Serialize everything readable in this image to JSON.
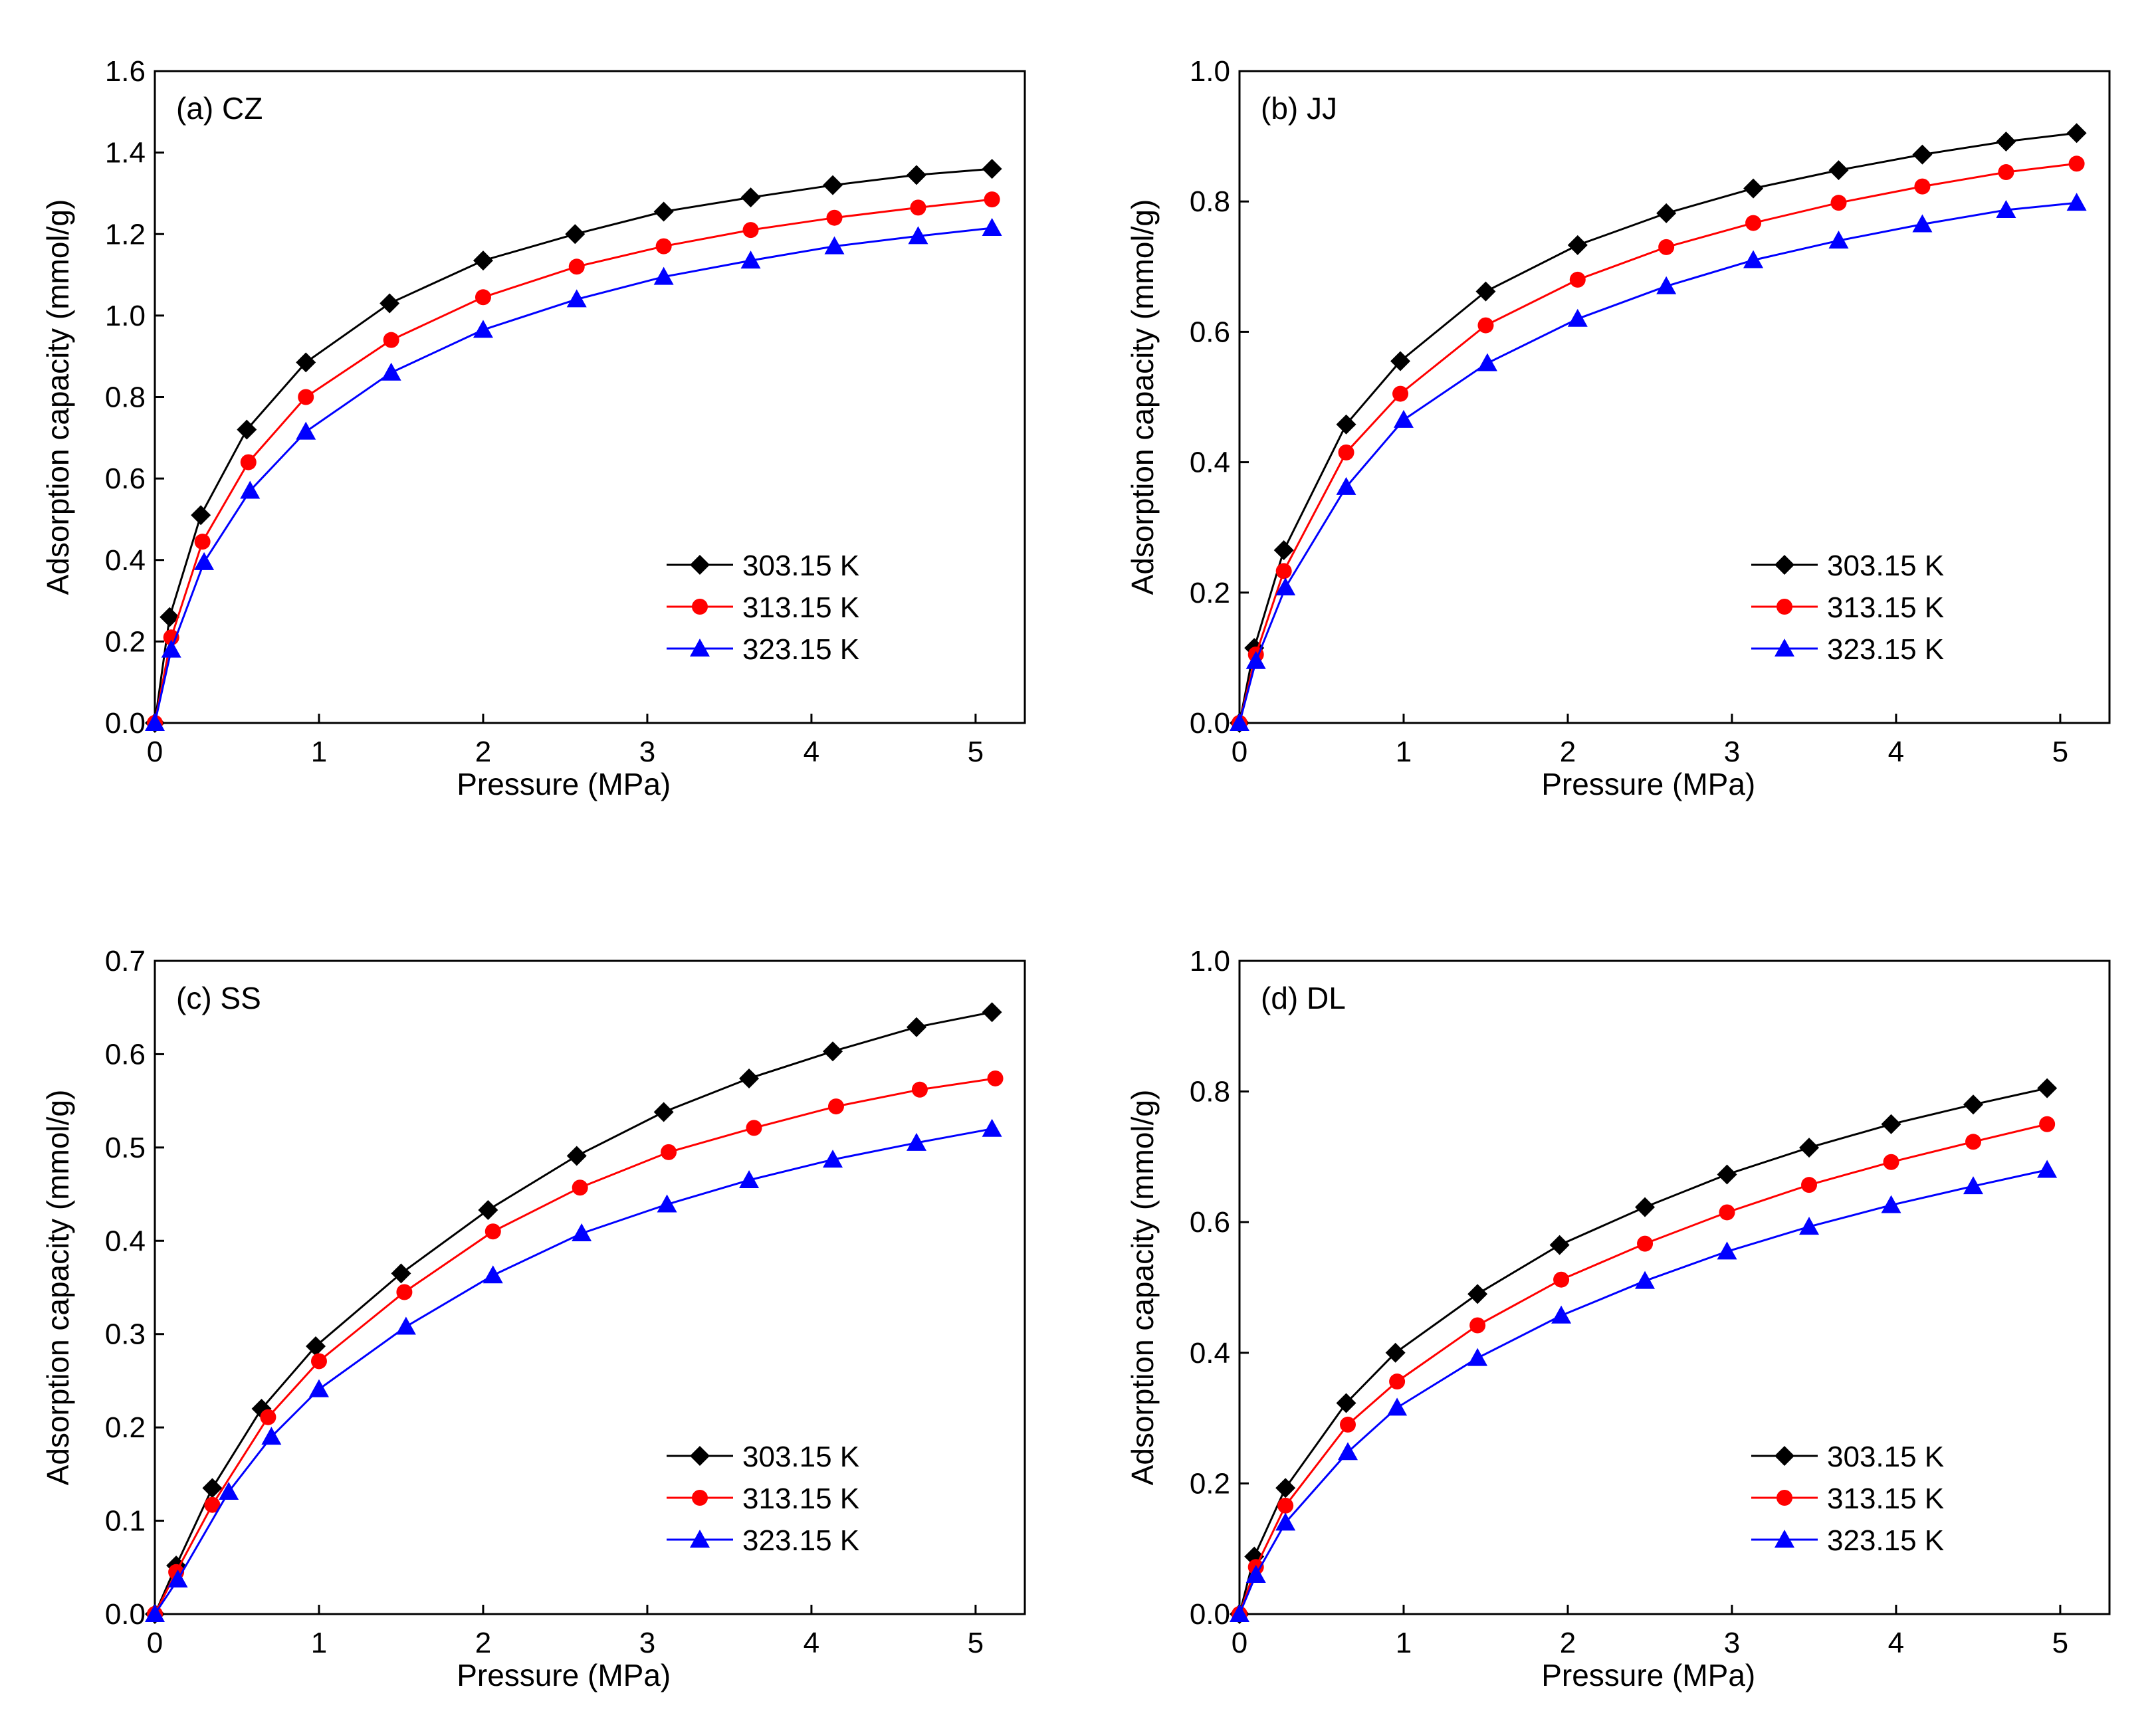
{
  "figure": {
    "title": ""
  },
  "colors": {
    "s303": "#000000",
    "s313": "#ff0000",
    "s323": "#0000ff"
  },
  "chart_data": [
    {
      "type": "line",
      "panel_label": "(a) CZ",
      "xlabel": "Pressure (MPa)",
      "ylabel": "Adsorption capacity (mmol/g)",
      "xlim": [
        0,
        5.3
      ],
      "ylim": [
        0,
        1.6
      ],
      "xticks": [
        "0",
        "1",
        "2",
        "3",
        "4",
        "5"
      ],
      "xtick_values": [
        0,
        1,
        2,
        3,
        4,
        5
      ],
      "yticks": [
        "0.0",
        "0.2",
        "0.4",
        "0.6",
        "0.8",
        "1.0",
        "1.2",
        "1.4",
        "1.6"
      ],
      "ytick_values": [
        0,
        0.2,
        0.4,
        0.6,
        0.8,
        1.0,
        1.2,
        1.4,
        1.6
      ],
      "legend_position": "lower-right",
      "series": [
        {
          "name": "303.15 K",
          "color_key": "s303",
          "marker": "diamond",
          "x": [
            0,
            0.09,
            0.28,
            0.56,
            0.92,
            1.43,
            2.0,
            2.56,
            3.1,
            3.63,
            4.13,
            4.64,
            5.1
          ],
          "y": [
            0,
            0.26,
            0.51,
            0.72,
            0.885,
            1.03,
            1.135,
            1.2,
            1.255,
            1.29,
            1.32,
            1.345,
            1.36
          ]
        },
        {
          "name": "313.15 K",
          "color_key": "s313",
          "marker": "circle",
          "x": [
            0,
            0.1,
            0.29,
            0.57,
            0.92,
            1.44,
            2.0,
            2.57,
            3.1,
            3.63,
            4.14,
            4.65,
            5.1
          ],
          "y": [
            0,
            0.21,
            0.445,
            0.64,
            0.8,
            0.94,
            1.045,
            1.12,
            1.17,
            1.21,
            1.24,
            1.265,
            1.285
          ]
        },
        {
          "name": "323.15 K",
          "color_key": "s323",
          "marker": "triangle",
          "x": [
            0,
            0.1,
            0.3,
            0.58,
            0.92,
            1.44,
            2.0,
            2.57,
            3.1,
            3.63,
            4.14,
            4.65,
            5.1
          ],
          "y": [
            0,
            0.18,
            0.395,
            0.57,
            0.715,
            0.86,
            0.965,
            1.04,
            1.095,
            1.135,
            1.17,
            1.195,
            1.215
          ]
        }
      ]
    },
    {
      "type": "line",
      "panel_label": "(b) JJ",
      "xlabel": "Pressure (MPa)",
      "ylabel": "Adsorption capacity (mmol/g)",
      "xlim": [
        0,
        5.3
      ],
      "ylim": [
        0,
        1.0
      ],
      "xticks": [
        "0",
        "1",
        "2",
        "3",
        "4",
        "5"
      ],
      "xtick_values": [
        0,
        1,
        2,
        3,
        4,
        5
      ],
      "yticks": [
        "0.0",
        "0.2",
        "0.4",
        "0.6",
        "0.8",
        "1.0"
      ],
      "ytick_values": [
        0,
        0.2,
        0.4,
        0.6,
        0.8,
        1.0
      ],
      "legend_position": "lower-right",
      "series": [
        {
          "name": "303.15 K",
          "color_key": "s303",
          "marker": "diamond",
          "x": [
            0,
            0.09,
            0.27,
            0.65,
            0.98,
            1.5,
            2.06,
            2.6,
            3.13,
            3.65,
            4.16,
            4.67,
            5.1
          ],
          "y": [
            0,
            0.115,
            0.265,
            0.458,
            0.555,
            0.662,
            0.733,
            0.782,
            0.82,
            0.848,
            0.872,
            0.892,
            0.905
          ]
        },
        {
          "name": "313.15 K",
          "color_key": "s313",
          "marker": "circle",
          "x": [
            0,
            0.1,
            0.27,
            0.65,
            0.98,
            1.5,
            2.06,
            2.6,
            3.13,
            3.65,
            4.16,
            4.67,
            5.1
          ],
          "y": [
            0,
            0.105,
            0.233,
            0.415,
            0.505,
            0.61,
            0.68,
            0.73,
            0.767,
            0.798,
            0.823,
            0.845,
            0.858
          ]
        },
        {
          "name": "323.15 K",
          "color_key": "s323",
          "marker": "triangle",
          "x": [
            0,
            0.1,
            0.28,
            0.65,
            1.0,
            1.51,
            2.06,
            2.6,
            3.13,
            3.65,
            4.16,
            4.67,
            5.1
          ],
          "y": [
            0,
            0.095,
            0.208,
            0.362,
            0.465,
            0.552,
            0.62,
            0.67,
            0.71,
            0.74,
            0.765,
            0.787,
            0.798
          ]
        }
      ]
    },
    {
      "type": "line",
      "panel_label": "(c) SS",
      "xlabel": "Pressure (MPa)",
      "ylabel": "Adsorption capacity (mmol/g)",
      "xlim": [
        0,
        5.3
      ],
      "ylim": [
        0,
        0.7
      ],
      "xticks": [
        "0",
        "1",
        "2",
        "3",
        "4",
        "5"
      ],
      "xtick_values": [
        0,
        1,
        2,
        3,
        4,
        5
      ],
      "yticks": [
        "0.0",
        "0.1",
        "0.2",
        "0.3",
        "0.4",
        "0.5",
        "0.6",
        "0.7"
      ],
      "ytick_values": [
        0,
        0.1,
        0.2,
        0.3,
        0.4,
        0.5,
        0.6,
        0.7
      ],
      "legend_position": "lower-right",
      "series": [
        {
          "name": "303.15 K",
          "color_key": "s303",
          "marker": "diamond",
          "x": [
            0,
            0.13,
            0.35,
            0.65,
            0.98,
            1.5,
            2.03,
            2.57,
            3.1,
            3.62,
            4.13,
            4.64,
            5.1
          ],
          "y": [
            0,
            0.052,
            0.135,
            0.22,
            0.287,
            0.365,
            0.433,
            0.491,
            0.538,
            0.574,
            0.603,
            0.629,
            0.645
          ]
        },
        {
          "name": "313.15 K",
          "color_key": "s313",
          "marker": "circle",
          "x": [
            0,
            0.13,
            0.35,
            0.69,
            1.0,
            1.52,
            2.06,
            2.59,
            3.13,
            3.65,
            4.15,
            4.66,
            5.12
          ],
          "y": [
            0,
            0.045,
            0.117,
            0.211,
            0.271,
            0.345,
            0.41,
            0.457,
            0.495,
            0.521,
            0.544,
            0.562,
            0.574
          ]
        },
        {
          "name": "323.15 K",
          "color_key": "s323",
          "marker": "triangle",
          "x": [
            0,
            0.14,
            0.45,
            0.71,
            1.0,
            1.53,
            2.06,
            2.6,
            3.12,
            3.62,
            4.13,
            4.64,
            5.1
          ],
          "y": [
            0,
            0.037,
            0.131,
            0.19,
            0.241,
            0.308,
            0.363,
            0.408,
            0.439,
            0.465,
            0.487,
            0.505,
            0.52
          ]
        }
      ]
    },
    {
      "type": "line",
      "panel_label": "(d) DL",
      "xlabel": "Pressure (MPa)",
      "ylabel": "Adsorption capacity (mmol/g)",
      "xlim": [
        0,
        5.3
      ],
      "ylim": [
        0,
        1.0
      ],
      "xticks": [
        "0",
        "1",
        "2",
        "3",
        "4",
        "5"
      ],
      "xtick_values": [
        0,
        1,
        2,
        3,
        4,
        5
      ],
      "yticks": [
        "0.0",
        "0.2",
        "0.4",
        "0.6",
        "0.8",
        "1.0"
      ],
      "ytick_values": [
        0,
        0.2,
        0.4,
        0.6,
        0.8,
        1.0
      ],
      "legend_position": "lower-right",
      "series": [
        {
          "name": "303.15 K",
          "color_key": "s303",
          "marker": "diamond",
          "x": [
            0,
            0.09,
            0.28,
            0.65,
            0.95,
            1.45,
            1.95,
            2.47,
            2.97,
            3.47,
            3.97,
            4.47,
            4.92
          ],
          "y": [
            0,
            0.088,
            0.193,
            0.323,
            0.4,
            0.49,
            0.565,
            0.623,
            0.673,
            0.714,
            0.75,
            0.78,
            0.805
          ]
        },
        {
          "name": "313.15 K",
          "color_key": "s313",
          "marker": "circle",
          "x": [
            0,
            0.1,
            0.28,
            0.66,
            0.96,
            1.45,
            1.96,
            2.47,
            2.97,
            3.47,
            3.97,
            4.47,
            4.92
          ],
          "y": [
            0,
            0.072,
            0.166,
            0.29,
            0.356,
            0.442,
            0.512,
            0.567,
            0.615,
            0.657,
            0.692,
            0.723,
            0.75
          ]
        },
        {
          "name": "323.15 K",
          "color_key": "s323",
          "marker": "triangle",
          "x": [
            0,
            0.1,
            0.28,
            0.66,
            0.96,
            1.45,
            1.96,
            2.47,
            2.97,
            3.47,
            3.97,
            4.47,
            4.92
          ],
          "y": [
            0,
            0.06,
            0.14,
            0.248,
            0.316,
            0.392,
            0.457,
            0.51,
            0.555,
            0.593,
            0.626,
            0.655,
            0.68
          ]
        }
      ]
    }
  ]
}
